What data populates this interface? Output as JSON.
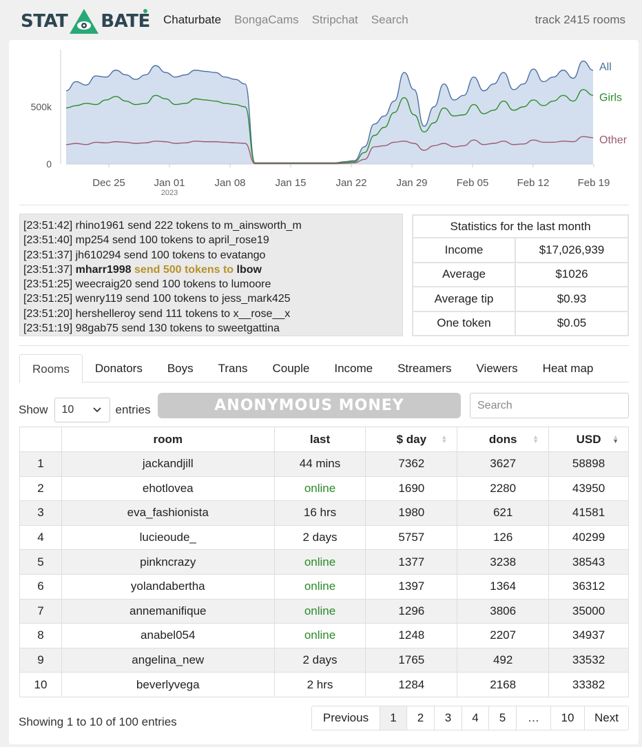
{
  "header": {
    "logo_left": "STAT",
    "logo_right": "BATE",
    "nav": [
      "Chaturbate",
      "BongaCams",
      "Stripchat",
      "Search"
    ],
    "track": "track 2415 rooms"
  },
  "chart_data": {
    "type": "area",
    "x_ticks": [
      "Dec 25",
      "Jan 01",
      "Jan 08",
      "Jan 15",
      "Jan 22",
      "Jan 29",
      "Feb 05",
      "Feb 12",
      "Feb 19"
    ],
    "x_sub_tick": "2023",
    "y_ticks": [
      "0",
      "500k"
    ],
    "ylim": [
      0,
      1000000
    ],
    "series": [
      {
        "name": "All",
        "color": "#4a6fa5",
        "fill": "#d3dfee",
        "values": [
          640000,
          720000,
          690000,
          770000,
          760000,
          820000,
          780000,
          740000,
          780000,
          860000,
          800000,
          760000,
          780000,
          820000,
          810000,
          800000,
          760000,
          740000,
          700000,
          10000,
          10000,
          10000,
          10000,
          10000,
          10000,
          10000,
          10000,
          10000,
          20000,
          30000,
          150000,
          350000,
          420000,
          550000,
          800000,
          650000,
          330000,
          500000,
          700000,
          560000,
          600000,
          760000,
          640000,
          700000,
          800000,
          650000,
          700000,
          830000,
          720000,
          760000,
          820000,
          750000,
          900000,
          820000
        ]
      },
      {
        "name": "Girls",
        "color": "#2e8b2e",
        "values": [
          490000,
          510000,
          530000,
          520000,
          560000,
          590000,
          550000,
          520000,
          530000,
          600000,
          570000,
          520000,
          530000,
          570000,
          560000,
          550000,
          530000,
          520000,
          500000,
          8000,
          8000,
          8000,
          8000,
          8000,
          8000,
          8000,
          8000,
          8000,
          15000,
          20000,
          100000,
          250000,
          320000,
          450000,
          580000,
          430000,
          280000,
          360000,
          490000,
          420000,
          430000,
          520000,
          440000,
          470000,
          550000,
          470000,
          500000,
          560000,
          510000,
          550000,
          600000,
          550000,
          650000,
          600000
        ]
      },
      {
        "name": "Other",
        "color": "#9c5a70",
        "values": [
          170000,
          180000,
          170000,
          190000,
          185000,
          195000,
          190000,
          180000,
          185000,
          200000,
          195000,
          180000,
          185000,
          200000,
          195000,
          195000,
          190000,
          185000,
          180000,
          3000,
          3000,
          3000,
          3000,
          3000,
          3000,
          3000,
          3000,
          3000,
          6000,
          10000,
          40000,
          150000,
          160000,
          190000,
          200000,
          180000,
          120000,
          160000,
          180000,
          150000,
          160000,
          210000,
          170000,
          180000,
          200000,
          170000,
          175000,
          210000,
          190000,
          190000,
          200000,
          195000,
          240000,
          230000
        ]
      }
    ]
  },
  "log": [
    {
      "time": "[23:51:42]",
      "user": "rhino1961",
      "action": "send 222 tokens to",
      "target": "m_ainsworth_m",
      "highlight": false
    },
    {
      "time": "[23:51:40]",
      "user": "mp254",
      "action": "send 100 tokens to",
      "target": "april_rose19",
      "highlight": false
    },
    {
      "time": "[23:51:37]",
      "user": "jh610294",
      "action": "send 100 tokens to",
      "target": "evatango",
      "highlight": false
    },
    {
      "time": "[23:51:37]",
      "user": "mharr1998",
      "action": "send 500 tokens to",
      "target": "lbow",
      "highlight": true
    },
    {
      "time": "[23:51:25]",
      "user": "weecraig20",
      "action": "send 100 tokens to",
      "target": "lumoore",
      "highlight": false
    },
    {
      "time": "[23:51:25]",
      "user": "wenry119",
      "action": "send 100 tokens to",
      "target": "jess_mark425",
      "highlight": false
    },
    {
      "time": "[23:51:20]",
      "user": "hershelleroy",
      "action": "send 111 tokens to",
      "target": "x__rose__x",
      "highlight": false
    },
    {
      "time": "[23:51:19]",
      "user": "98gab75",
      "action": "send 130 tokens to",
      "target": "sweetgattina",
      "highlight": false
    }
  ],
  "stats": {
    "title": "Statistics for the last month",
    "rows": [
      {
        "label": "Income",
        "value": "$17,026,939"
      },
      {
        "label": "Average",
        "value": "$1026"
      },
      {
        "label": "Average tip",
        "value": "$0.93"
      },
      {
        "label": "One token",
        "value": "$0.05"
      }
    ]
  },
  "tabs": [
    "Rooms",
    "Donators",
    "Boys",
    "Trans",
    "Couple",
    "Income",
    "Streamers",
    "Viewers",
    "Heat map"
  ],
  "controls": {
    "show_label": "Show",
    "entries_value": "10",
    "entries_label": "entries",
    "banner_text": "ANONYMOUS MONEY",
    "search_placeholder": "Search"
  },
  "table": {
    "columns": [
      "",
      "room",
      "last",
      "$ day",
      "dons",
      "USD"
    ],
    "rows": [
      [
        "1",
        "jackandjill",
        "44 mins",
        "7362",
        "3627",
        "58898"
      ],
      [
        "2",
        "ehotlovea",
        "online",
        "1690",
        "2280",
        "43950"
      ],
      [
        "3",
        "eva_fashionista",
        "16 hrs",
        "1980",
        "621",
        "41581"
      ],
      [
        "4",
        "lucieoude_",
        "2 days",
        "5757",
        "126",
        "40299"
      ],
      [
        "5",
        "pinkncrazy",
        "online",
        "1377",
        "3238",
        "38543"
      ],
      [
        "6",
        "yolandabertha",
        "online",
        "1397",
        "1364",
        "36312"
      ],
      [
        "7",
        "annemanifique",
        "online",
        "1296",
        "3806",
        "35000"
      ],
      [
        "8",
        "anabel054",
        "online",
        "1248",
        "2207",
        "34937"
      ],
      [
        "9",
        "angelina_new",
        "2 days",
        "1765",
        "492",
        "33532"
      ],
      [
        "10",
        "beverlyvega",
        "2 hrs",
        "1284",
        "2168",
        "33382"
      ]
    ]
  },
  "footer": {
    "info": "Showing 1 to 10 of 100 entries",
    "pages": [
      "Previous",
      "1",
      "2",
      "3",
      "4",
      "5",
      "…",
      "10",
      "Next"
    ],
    "active_page": "1"
  }
}
